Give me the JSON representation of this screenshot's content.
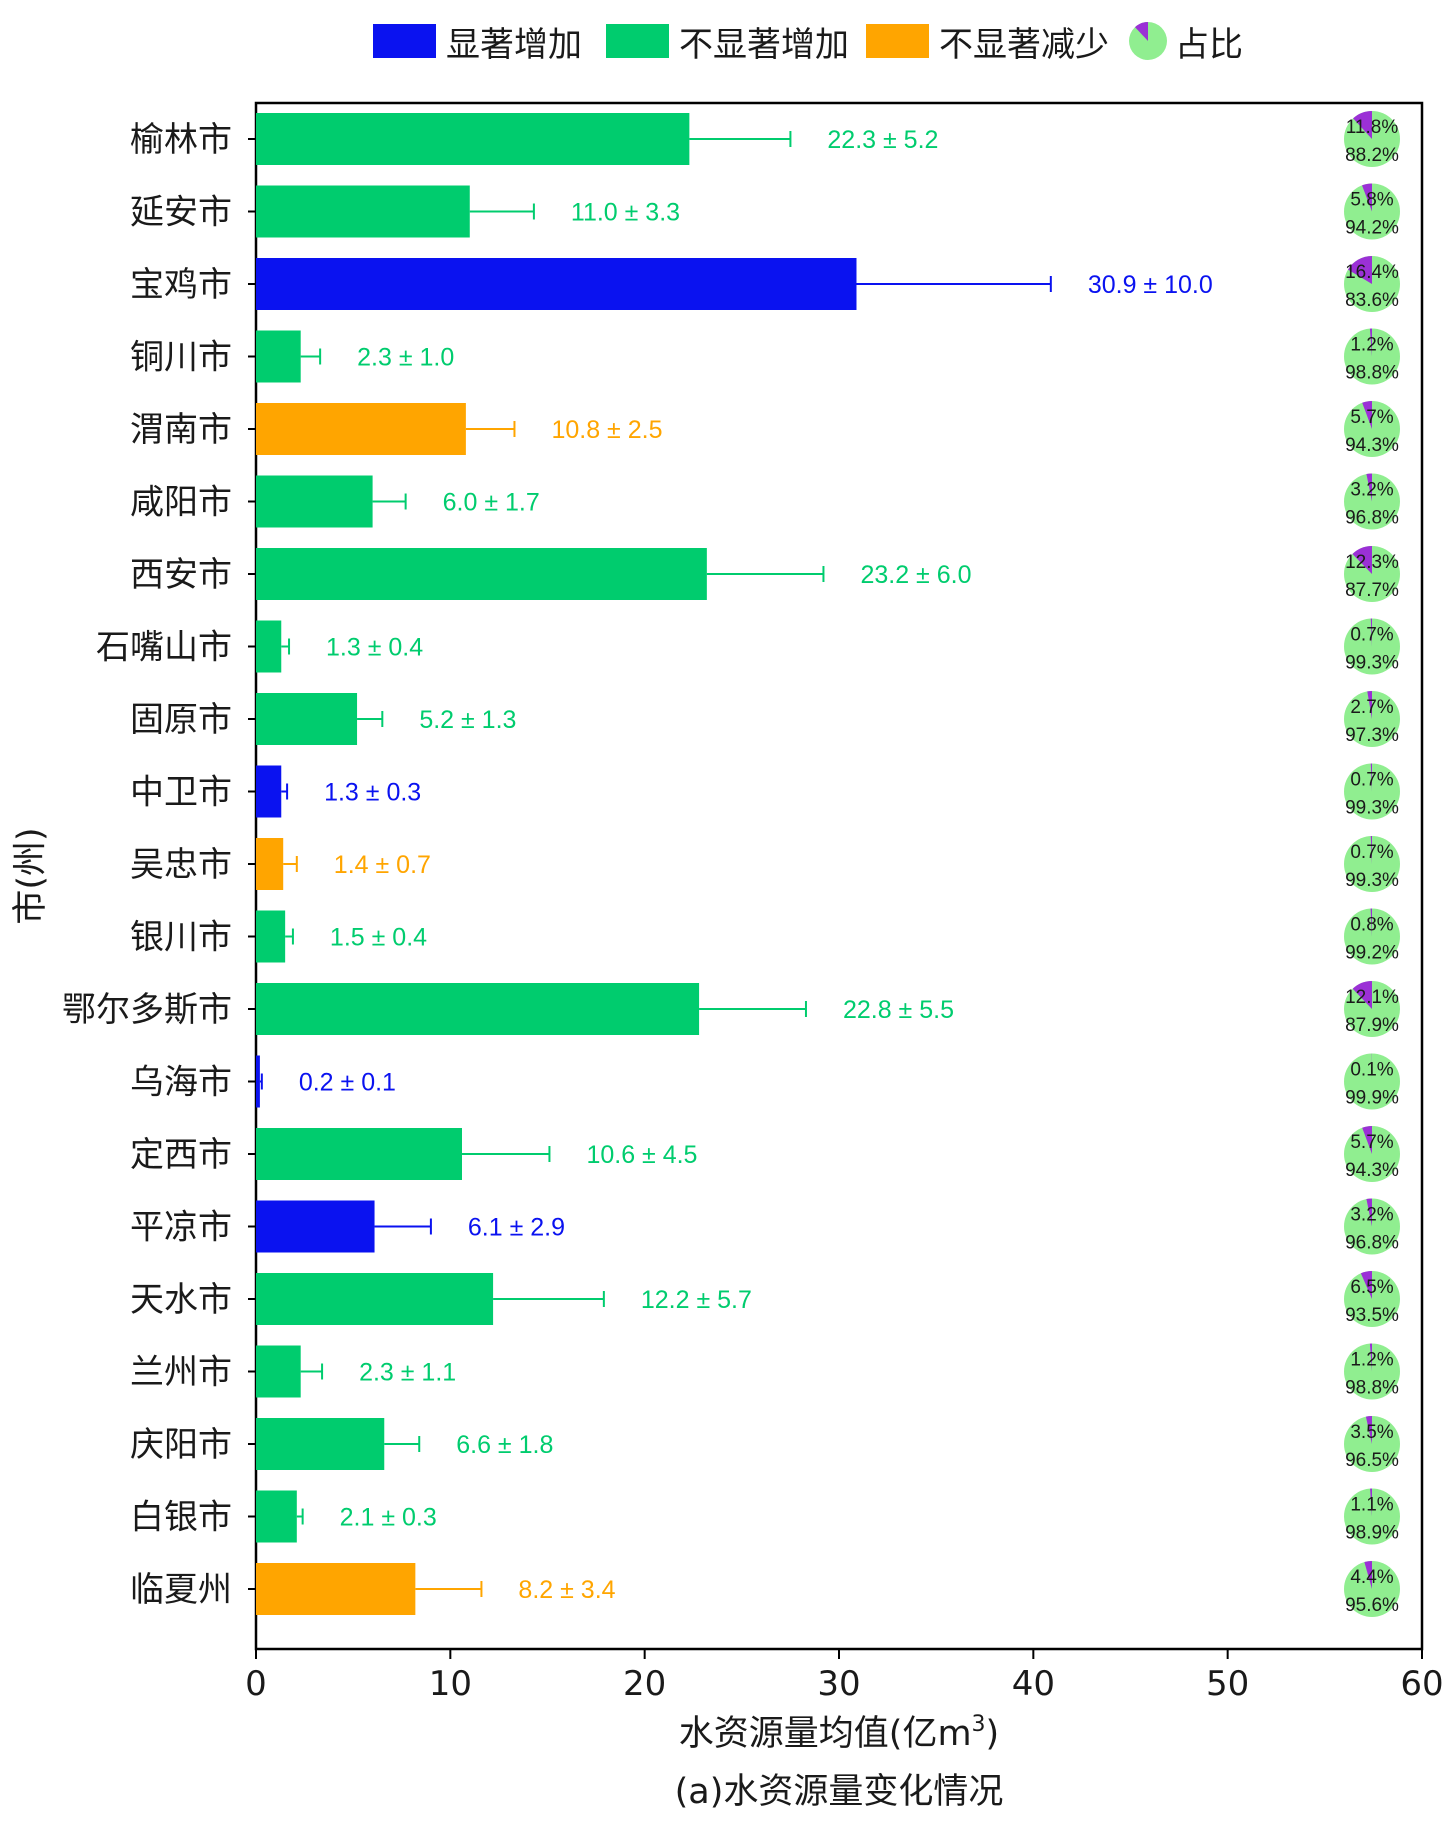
{
  "chart_data": {
    "type": "bar",
    "orientation": "horizontal",
    "xlabel": "水资源量均值(亿m³)",
    "xlabel_main": "水资源量均值(亿m",
    "xlabel_sup": "3",
    "xlabel_close": ")",
    "ylabel": "市(州)",
    "caption": "(a)水资源量变化情况",
    "xlim": [
      0,
      60
    ],
    "xticks": [
      "0",
      "10",
      "20",
      "30",
      "40",
      "50",
      "60"
    ],
    "grid": false,
    "legend_position": "top",
    "legend": [
      {
        "label": "显著增加",
        "color": "#0a12f0",
        "kind": "box"
      },
      {
        "label": "不显著增加",
        "color": "#00cc6e",
        "kind": "box"
      },
      {
        "label": "不显著减少",
        "color": "#ffa500",
        "kind": "box"
      },
      {
        "label": "占比",
        "color": "#90ee90",
        "kind": "pie"
      }
    ],
    "colors": {
      "显著增加": "#0a12f0",
      "不显著增加": "#00cc6e",
      "不显著减少": "#ffa500",
      "pie_main": "#90ee90",
      "pie_share": "#9b30d6"
    },
    "categories": [
      "榆林市",
      "延安市",
      "宝鸡市",
      "铜川市",
      "渭南市",
      "咸阳市",
      "西安市",
      "石嘴山市",
      "固原市",
      "中卫市",
      "吴忠市",
      "银川市",
      "鄂尔多斯市",
      "乌海市",
      "定西市",
      "平凉市",
      "天水市",
      "兰州市",
      "庆阳市",
      "白银市",
      "临夏州"
    ],
    "values": [
      22.3,
      11.0,
      30.9,
      2.3,
      10.8,
      6.0,
      23.2,
      1.3,
      5.2,
      1.3,
      1.4,
      1.5,
      22.8,
      0.2,
      10.6,
      6.1,
      12.2,
      2.3,
      6.6,
      2.1,
      8.2
    ],
    "errors": [
      5.2,
      3.3,
      10.0,
      1.0,
      2.5,
      1.7,
      6.0,
      0.4,
      1.3,
      0.3,
      0.7,
      0.4,
      5.5,
      0.1,
      4.5,
      2.9,
      5.7,
      1.1,
      1.8,
      0.3,
      3.4
    ],
    "trend": [
      "不显著增加",
      "不显著增加",
      "显著增加",
      "不显著增加",
      "不显著减少",
      "不显著增加",
      "不显著增加",
      "不显著增加",
      "不显著增加",
      "显著增加",
      "不显著减少",
      "不显著增加",
      "不显著增加",
      "显著增加",
      "不显著增加",
      "显著增加",
      "不显著增加",
      "不显著增加",
      "不显著增加",
      "不显著增加",
      "不显著减少"
    ],
    "value_labels": [
      "22.3 ± 5.2",
      "11.0 ± 3.3",
      "30.9 ± 10.0",
      "2.3 ± 1.0",
      "10.8 ± 2.5",
      "6.0 ± 1.7",
      "23.2 ± 6.0",
      "1.3 ± 0.4",
      "5.2 ± 1.3",
      "1.3 ± 0.3",
      "1.4 ± 0.7",
      "1.5 ± 0.4",
      "22.8 ± 5.5",
      "0.2 ± 0.1",
      "10.6 ± 4.5",
      "6.1 ± 2.9",
      "12.2 ± 5.7",
      "2.3 ± 1.1",
      "6.6 ± 1.8",
      "2.1 ± 0.3",
      "8.2 ± 3.4"
    ],
    "share_percent": [
      11.8,
      5.8,
      16.4,
      1.2,
      5.7,
      3.2,
      12.3,
      0.7,
      2.7,
      0.7,
      0.7,
      0.8,
      12.1,
      0.1,
      5.7,
      3.2,
      6.5,
      1.2,
      3.5,
      1.1,
      4.4
    ],
    "share_labels": [
      "11.8%",
      "5.8%",
      "16.4%",
      "1.2%",
      "5.7%",
      "3.2%",
      "12.3%",
      "0.7%",
      "2.7%",
      "0.7%",
      "0.7%",
      "0.8%",
      "12.1%",
      "0.1%",
      "5.7%",
      "3.2%",
      "6.5%",
      "1.2%",
      "3.5%",
      "1.1%",
      "4.4%"
    ],
    "rest_labels": [
      "88.2%",
      "94.2%",
      "83.6%",
      "98.8%",
      "94.3%",
      "96.8%",
      "87.7%",
      "99.3%",
      "97.3%",
      "99.3%",
      "99.3%",
      "99.2%",
      "87.9%",
      "99.9%",
      "94.3%",
      "96.8%",
      "93.5%",
      "98.8%",
      "96.5%",
      "98.9%",
      "95.6%"
    ]
  }
}
